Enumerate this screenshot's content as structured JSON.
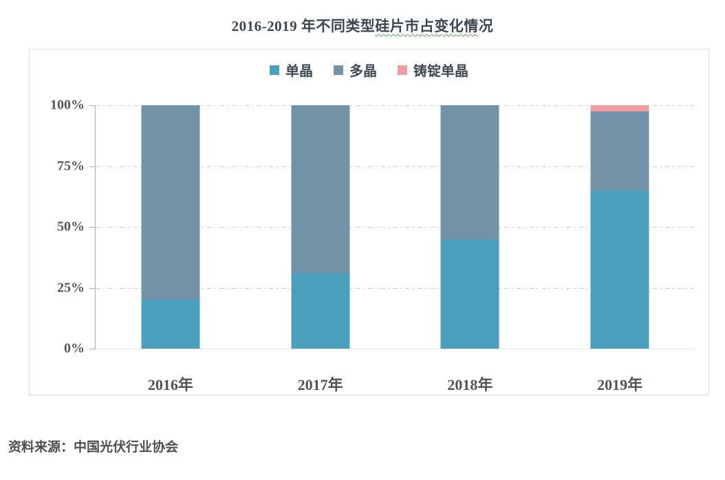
{
  "title": {
    "full": "2016-2019 年不同类型硅片市占变化情况",
    "plain_part": "2016-2019 年不同类型",
    "squiggle_part": "硅片市占变化情",
    "tail_part": "况"
  },
  "source_note": "资料来源：中国光伏行业协会",
  "colors": {
    "mono": "#4a9fbc",
    "multi": "#7292a8",
    "cast_mono": "#ef9da3",
    "axis_line": "#aeaeae",
    "grid_line": "#d2d2d2",
    "title_text": "#3d4751",
    "label_text": "#54585b"
  },
  "chart_data": {
    "type": "bar",
    "stacked": true,
    "title": "2016-2019 年不同类型硅片市占变化情况",
    "categories": [
      "2016年",
      "2017年",
      "2018年",
      "2019年"
    ],
    "series": [
      {
        "name": "单晶",
        "color": "#4a9fbc",
        "values": [
          20,
          31,
          45,
          65
        ]
      },
      {
        "name": "多晶",
        "color": "#7292a8",
        "values": [
          80,
          69,
          55,
          32.5
        ]
      },
      {
        "name": "铸锭单晶",
        "color": "#ef9da3",
        "values": [
          0,
          0,
          0,
          2.5
        ]
      }
    ],
    "xlabel": "",
    "ylabel": "",
    "ylim": [
      0,
      100
    ],
    "yticks": [
      {
        "value": 0,
        "label": "0%"
      },
      {
        "value": 25,
        "label": "25%"
      },
      {
        "value": 50,
        "label": "50%"
      },
      {
        "value": 75,
        "label": "75%"
      },
      {
        "value": 100,
        "label": "100%"
      }
    ],
    "grid": true,
    "legend_position": "top"
  }
}
